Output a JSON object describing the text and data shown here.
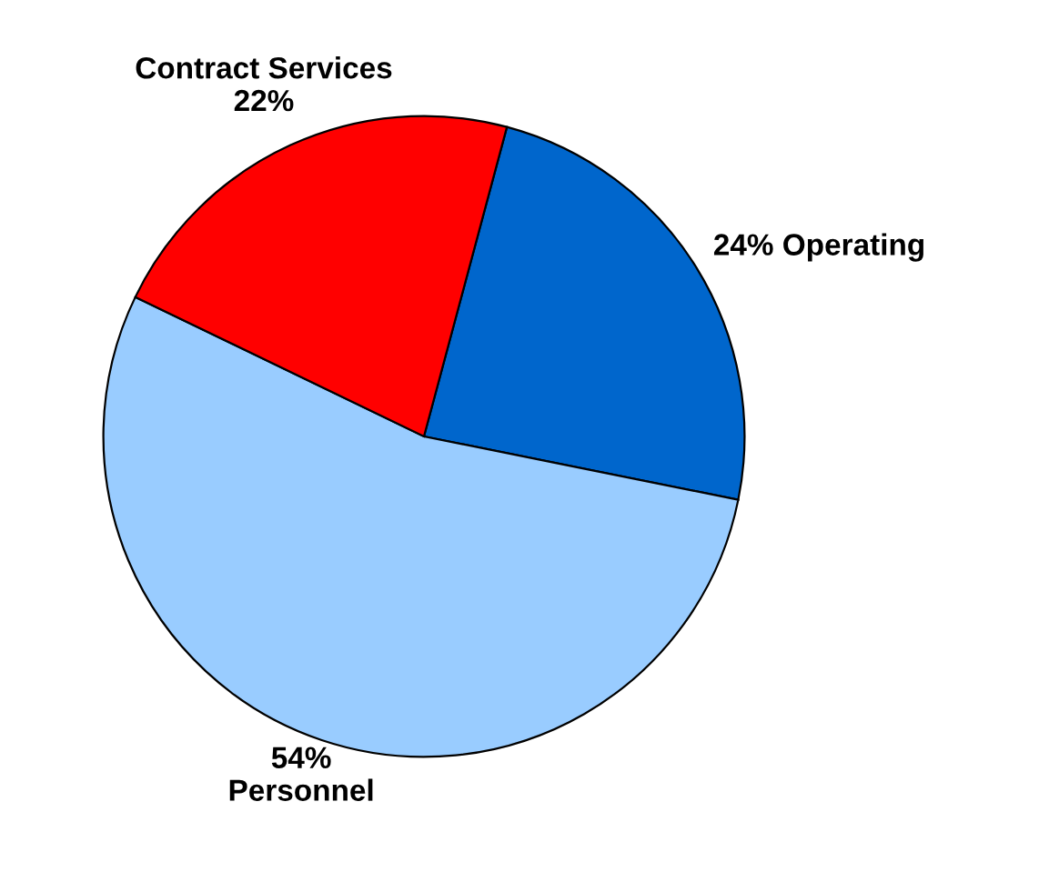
{
  "chart_data": {
    "type": "pie",
    "categories": [
      "Operating",
      "Personnel",
      "Contract Services"
    ],
    "values": [
      24,
      54,
      22
    ],
    "colors": [
      "#0066cc",
      "#99ccff",
      "#ff0000"
    ],
    "value_labels": [
      "24%",
      "54%",
      "22%"
    ]
  }
}
